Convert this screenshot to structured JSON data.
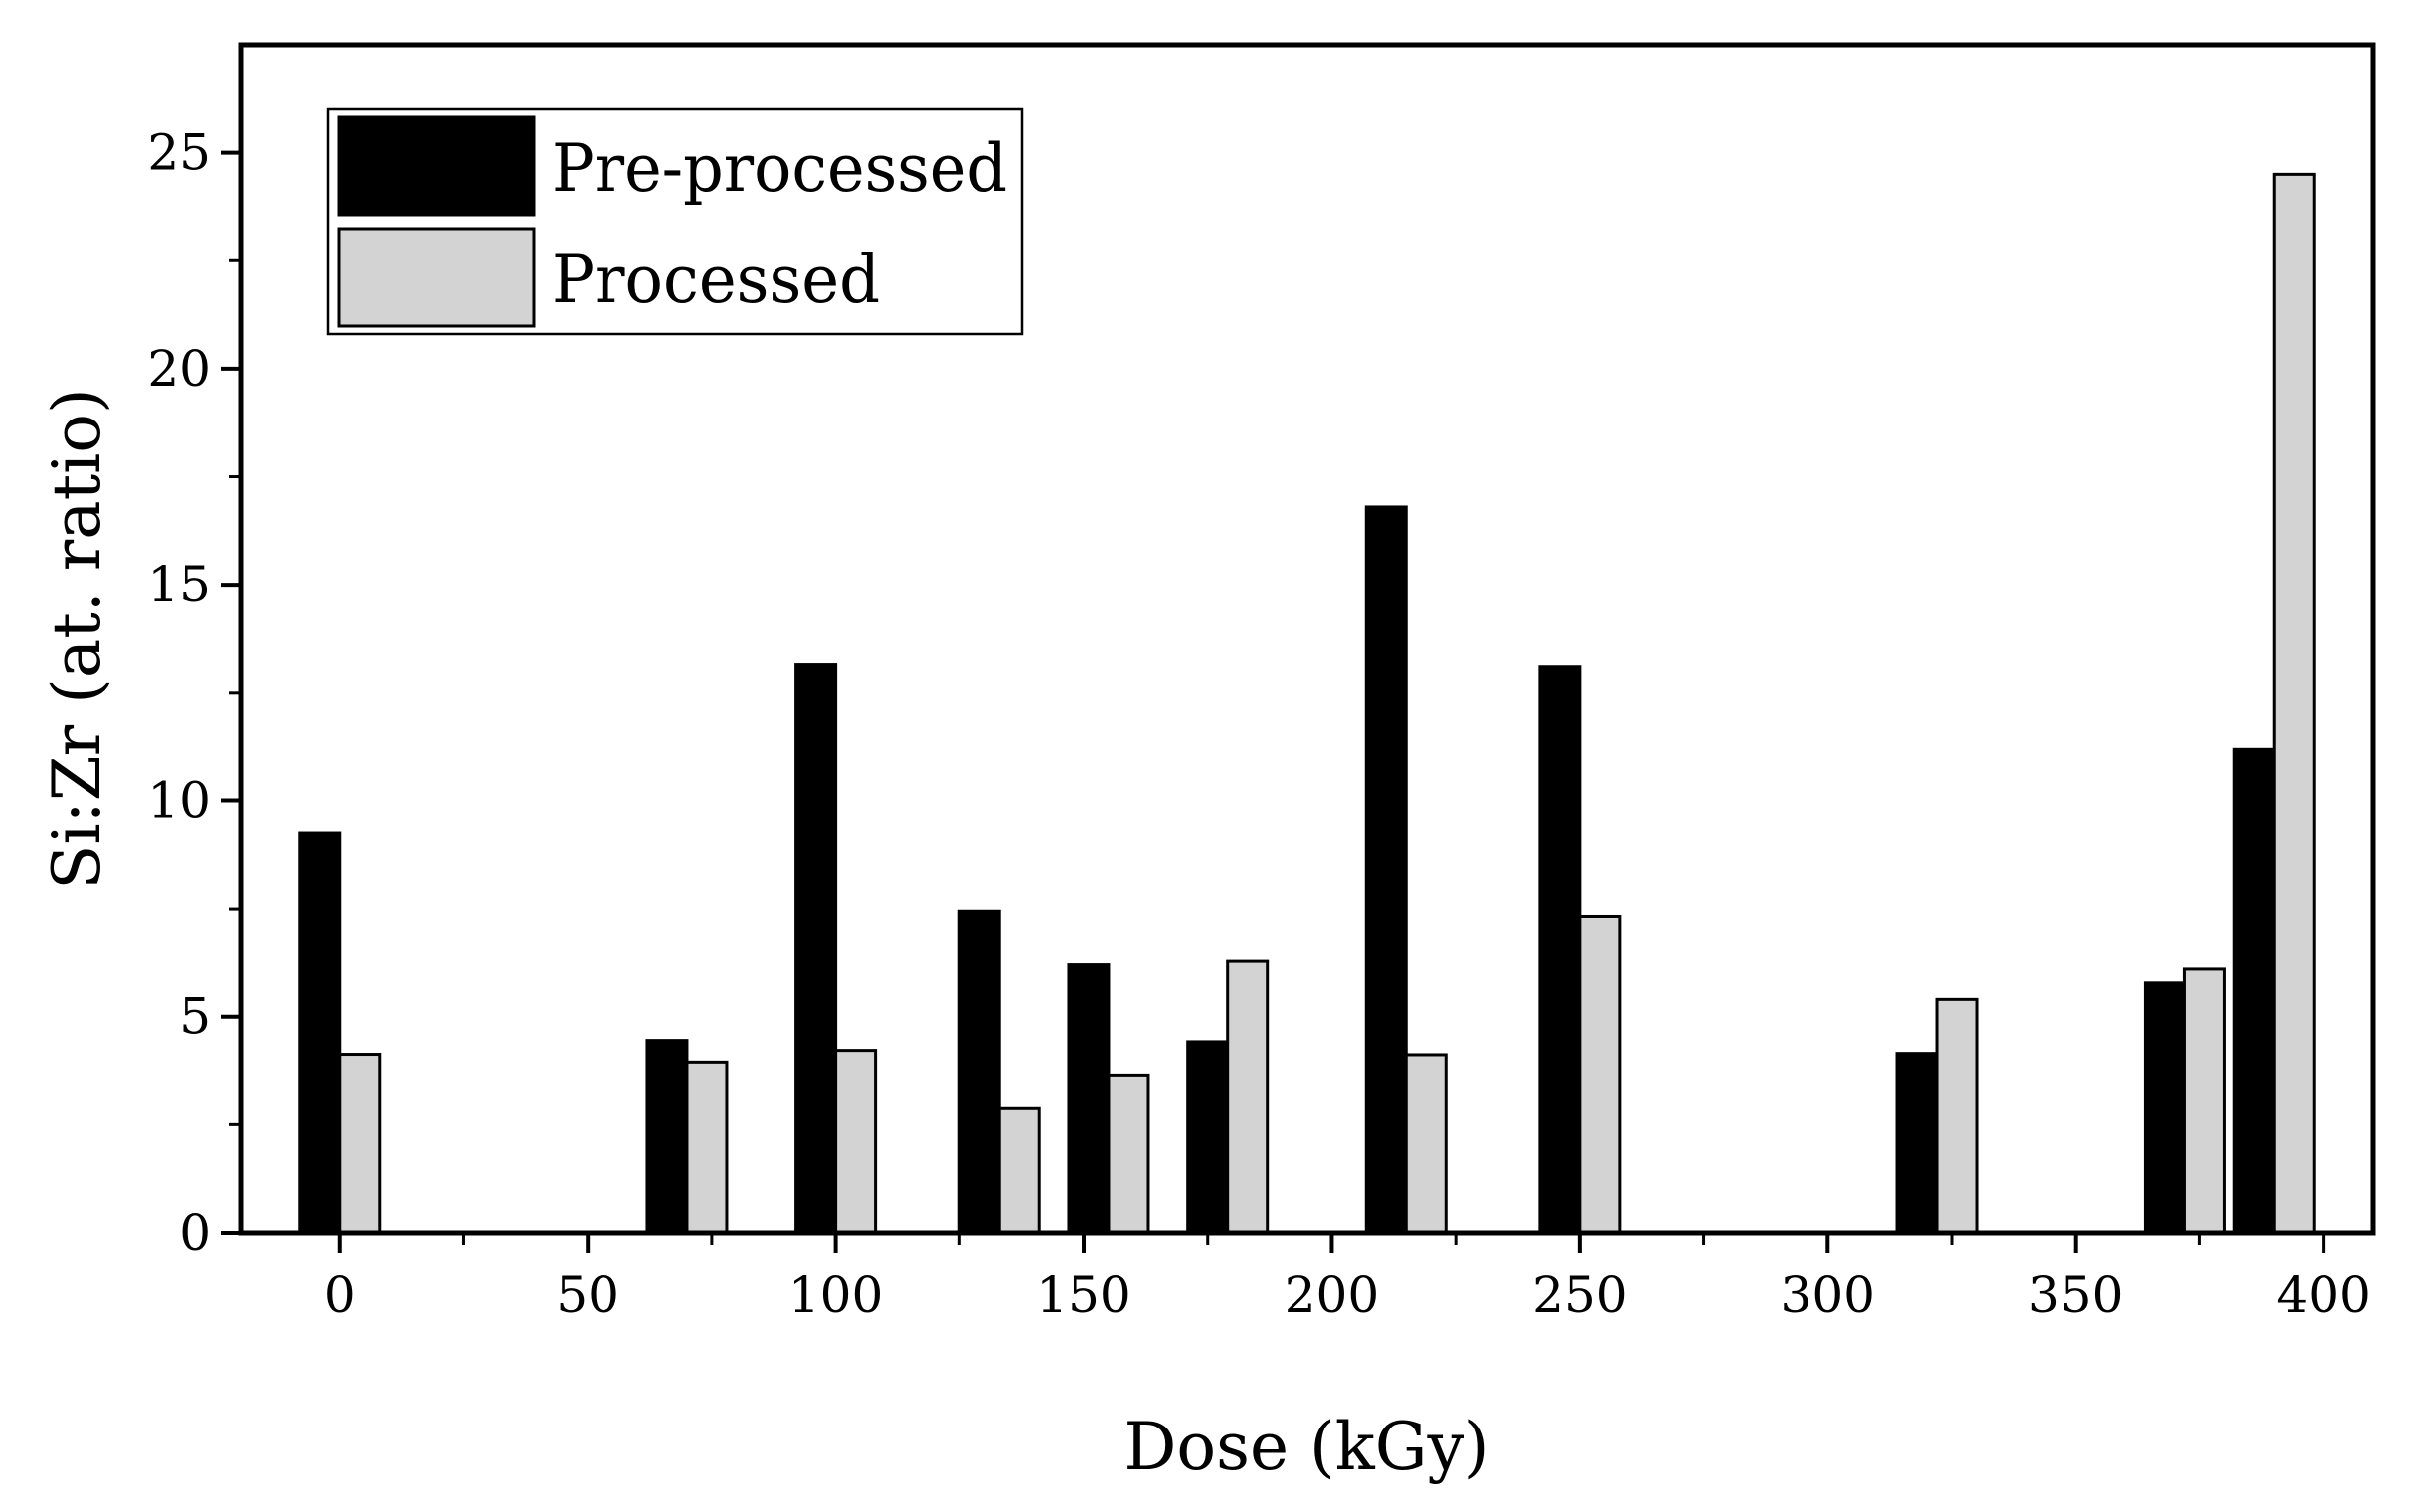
{
  "chart_data": {
    "type": "bar",
    "xlabel": "Dose (kGy)",
    "ylabel": "Si:Zr (at. ratio)",
    "xlim": [
      -20,
      410
    ],
    "ylim": [
      0,
      27.5
    ],
    "xticks": [
      0,
      50,
      100,
      150,
      200,
      250,
      300,
      350,
      400
    ],
    "yticks": [
      0,
      5,
      10,
      15,
      20,
      25
    ],
    "legend_position": "top-left",
    "series": [
      {
        "name": "Pre-processed",
        "color": "#000000",
        "points": [
          {
            "x": 0,
            "y": 9.25
          },
          {
            "x": 70,
            "y": 4.45
          },
          {
            "x": 100,
            "y": 13.15
          },
          {
            "x": 133,
            "y": 7.45
          },
          {
            "x": 155,
            "y": 6.2
          },
          {
            "x": 179,
            "y": 4.42
          },
          {
            "x": 215,
            "y": 16.8
          },
          {
            "x": 250,
            "y": 13.1
          },
          {
            "x": 322,
            "y": 4.15
          },
          {
            "x": 372,
            "y": 5.78
          },
          {
            "x": 390,
            "y": 11.2
          }
        ]
      },
      {
        "name": "Processed",
        "color": "#d3d3d3",
        "points": [
          {
            "x": 0,
            "y": 4.13
          },
          {
            "x": 70,
            "y": 3.95
          },
          {
            "x": 100,
            "y": 4.22
          },
          {
            "x": 133,
            "y": 2.87
          },
          {
            "x": 155,
            "y": 3.65
          },
          {
            "x": 179,
            "y": 6.28
          },
          {
            "x": 215,
            "y": 4.12
          },
          {
            "x": 250,
            "y": 7.33
          },
          {
            "x": 322,
            "y": 5.4
          },
          {
            "x": 372,
            "y": 6.1
          },
          {
            "x": 390,
            "y": 24.5
          }
        ]
      }
    ]
  }
}
